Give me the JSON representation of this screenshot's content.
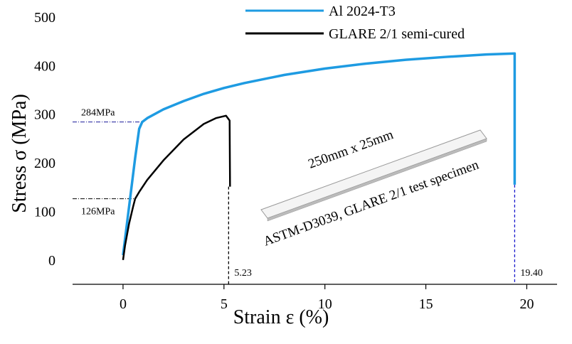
{
  "chart_data": {
    "type": "line",
    "x_label": "Strain ε (%)",
    "y_label": "Stress σ (MPa)",
    "xlim": [
      -2.5,
      21.5
    ],
    "ylim": [
      -50,
      500
    ],
    "xticks": [
      0,
      5,
      10,
      15,
      20
    ],
    "yticks": [
      0,
      100,
      200,
      300,
      400,
      500
    ],
    "series": [
      {
        "name": "Al 2024-T3",
        "color": "#1e9be2",
        "x": [
          0,
          0.3,
          0.6,
          0.8,
          0.95,
          1.2,
          2,
          3,
          4,
          5,
          6,
          8,
          10,
          12,
          14,
          16,
          18,
          19.4,
          19.4
        ],
        "values": [
          10,
          110,
          210,
          270,
          284,
          292,
          310,
          327,
          342,
          354,
          364,
          381,
          394,
          404,
          412,
          418,
          423,
          425,
          155
        ]
      },
      {
        "name": "GLARE 2/1 semi-cured",
        "color": "#000000",
        "x": [
          0,
          0.1,
          0.3,
          0.5,
          0.6,
          0.8,
          1.2,
          2,
          3,
          4,
          4.6,
          5.1,
          5.28,
          5.3
        ],
        "values": [
          0,
          30,
          75,
          110,
          126,
          140,
          165,
          205,
          248,
          280,
          292,
          297,
          287,
          151
        ]
      }
    ],
    "reference_lines": {
      "y": [
        {
          "value": 284,
          "label": "284MPa"
        },
        {
          "value": 126,
          "label": "126MPa"
        }
      ],
      "x": [
        5.23,
        {
          "value": 19.4,
          "label": "19.40"
        }
      ]
    },
    "annotations": [
      "250mm x 25mm",
      "ASTM-D3039, GLARE 2/1 test specimen"
    ]
  }
}
